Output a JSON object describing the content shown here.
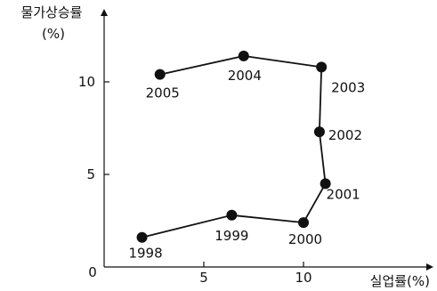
{
  "chart_data": {
    "type": "scatter",
    "connected": true,
    "title": "",
    "xlabel": "실업률(%)",
    "ylabel_line1": "물가상승률",
    "ylabel_line2": "(%)",
    "xlim": [
      0,
      12.8
    ],
    "ylim": [
      0,
      13.3
    ],
    "x_ticks": [
      {
        "value": 0,
        "label": "0"
      },
      {
        "value": 5,
        "label": "5"
      },
      {
        "value": 10,
        "label": "10"
      }
    ],
    "y_ticks": [
      {
        "value": 5,
        "label": "5"
      },
      {
        "value": 10,
        "label": "10"
      }
    ],
    "grid": false,
    "legend": "none",
    "colors": {
      "line": "#111111",
      "marker": "#111111",
      "axis": "#111111"
    },
    "series": [
      {
        "points": [
          {
            "label": "1998",
            "x": 1.9,
            "y": 1.6
          },
          {
            "label": "1999",
            "x": 6.4,
            "y": 2.8
          },
          {
            "label": "2000",
            "x": 10.0,
            "y": 2.4
          },
          {
            "label": "2001",
            "x": 11.1,
            "y": 4.5
          },
          {
            "label": "2002",
            "x": 10.8,
            "y": 7.3
          },
          {
            "label": "2003",
            "x": 10.9,
            "y": 10.8
          },
          {
            "label": "2004",
            "x": 7.0,
            "y": 11.4
          },
          {
            "label": "2005",
            "x": 2.8,
            "y": 10.4
          }
        ]
      }
    ]
  }
}
